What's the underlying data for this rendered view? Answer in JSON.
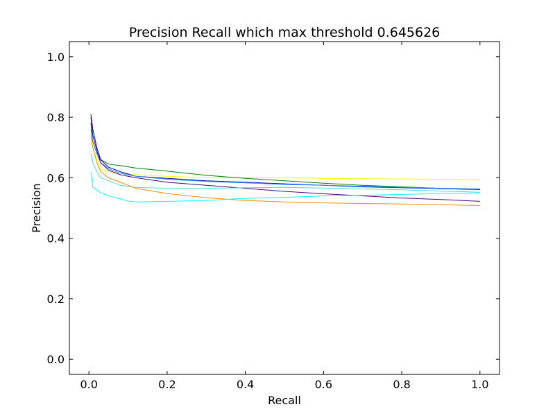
{
  "chart_data": {
    "type": "line",
    "title": "Precision Recall which max threshold 0.645626",
    "xlabel": "Recall",
    "ylabel": "Precision",
    "xlim": [
      -0.05,
      1.05
    ],
    "ylim": [
      -0.05,
      1.05
    ],
    "xticks": [
      0.0,
      0.2,
      0.4,
      0.6,
      0.8,
      1.0
    ],
    "yticks": [
      0.0,
      0.2,
      0.4,
      0.6,
      0.8,
      1.0
    ],
    "xtick_labels": [
      "0.0",
      "0.2",
      "0.4",
      "0.6",
      "0.8",
      "1.0"
    ],
    "ytick_labels": [
      "0.0",
      "0.2",
      "0.4",
      "0.6",
      "0.8",
      "1.0"
    ],
    "grid": false,
    "series": [
      {
        "color": "#ffff00",
        "points": [
          [
            0.005,
            0.72
          ],
          [
            0.01,
            0.7
          ],
          [
            0.02,
            0.66
          ],
          [
            0.03,
            0.63
          ],
          [
            0.05,
            0.62
          ],
          [
            0.08,
            0.615
          ],
          [
            0.12,
            0.61
          ],
          [
            0.2,
            0.605
          ],
          [
            0.3,
            0.6
          ],
          [
            0.4,
            0.6
          ],
          [
            0.5,
            0.6
          ],
          [
            0.6,
            0.598
          ],
          [
            0.7,
            0.597
          ],
          [
            0.8,
            0.596
          ],
          [
            0.9,
            0.595
          ],
          [
            1.0,
            0.593
          ]
        ]
      },
      {
        "color": "#008000",
        "points": [
          [
            0.005,
            0.78
          ],
          [
            0.01,
            0.72
          ],
          [
            0.02,
            0.68
          ],
          [
            0.03,
            0.66
          ],
          [
            0.05,
            0.645
          ],
          [
            0.08,
            0.64
          ],
          [
            0.12,
            0.632
          ],
          [
            0.2,
            0.622
          ],
          [
            0.3,
            0.608
          ],
          [
            0.4,
            0.598
          ],
          [
            0.5,
            0.59
          ],
          [
            0.6,
            0.582
          ],
          [
            0.7,
            0.575
          ],
          [
            0.8,
            0.57
          ],
          [
            0.9,
            0.565
          ],
          [
            1.0,
            0.562
          ]
        ]
      },
      {
        "color": "#0000cd",
        "points": [
          [
            0.005,
            0.81
          ],
          [
            0.01,
            0.76
          ],
          [
            0.02,
            0.7
          ],
          [
            0.03,
            0.66
          ],
          [
            0.05,
            0.635
          ],
          [
            0.08,
            0.62
          ],
          [
            0.12,
            0.605
          ],
          [
            0.2,
            0.598
          ],
          [
            0.3,
            0.59
          ],
          [
            0.4,
            0.585
          ],
          [
            0.5,
            0.58
          ],
          [
            0.6,
            0.575
          ],
          [
            0.7,
            0.57
          ],
          [
            0.8,
            0.567
          ],
          [
            0.9,
            0.564
          ],
          [
            1.0,
            0.561
          ]
        ]
      },
      {
        "color": "#1e90ff",
        "points": [
          [
            0.005,
            0.76
          ],
          [
            0.01,
            0.72
          ],
          [
            0.02,
            0.68
          ],
          [
            0.03,
            0.65
          ],
          [
            0.05,
            0.63
          ],
          [
            0.08,
            0.615
          ],
          [
            0.12,
            0.605
          ],
          [
            0.2,
            0.595
          ],
          [
            0.3,
            0.588
          ],
          [
            0.4,
            0.583
          ],
          [
            0.5,
            0.578
          ],
          [
            0.6,
            0.575
          ],
          [
            0.7,
            0.572
          ],
          [
            0.8,
            0.568
          ],
          [
            0.9,
            0.565
          ],
          [
            1.0,
            0.563
          ]
        ]
      },
      {
        "color": "#4b0082",
        "points": [
          [
            0.005,
            0.8
          ],
          [
            0.01,
            0.74
          ],
          [
            0.02,
            0.69
          ],
          [
            0.03,
            0.65
          ],
          [
            0.05,
            0.625
          ],
          [
            0.08,
            0.61
          ],
          [
            0.12,
            0.6
          ],
          [
            0.2,
            0.585
          ],
          [
            0.3,
            0.575
          ],
          [
            0.4,
            0.565
          ],
          [
            0.5,
            0.555
          ],
          [
            0.6,
            0.547
          ],
          [
            0.7,
            0.54
          ],
          [
            0.8,
            0.533
          ],
          [
            0.9,
            0.528
          ],
          [
            1.0,
            0.522
          ]
        ]
      },
      {
        "color": "#40e0d0",
        "points": [
          [
            0.005,
            0.68
          ],
          [
            0.01,
            0.65
          ],
          [
            0.02,
            0.62
          ],
          [
            0.03,
            0.6
          ],
          [
            0.05,
            0.59
          ],
          [
            0.08,
            0.575
          ],
          [
            0.12,
            0.568
          ],
          [
            0.2,
            0.565
          ],
          [
            0.3,
            0.565
          ],
          [
            0.4,
            0.567
          ],
          [
            0.5,
            0.568
          ],
          [
            0.6,
            0.566
          ],
          [
            0.7,
            0.563
          ],
          [
            0.8,
            0.56
          ],
          [
            0.9,
            0.556
          ],
          [
            1.0,
            0.552
          ]
        ]
      },
      {
        "color": "#ff8c00",
        "points": [
          [
            0.005,
            0.74
          ],
          [
            0.01,
            0.7
          ],
          [
            0.02,
            0.65
          ],
          [
            0.03,
            0.62
          ],
          [
            0.05,
            0.6
          ],
          [
            0.08,
            0.585
          ],
          [
            0.12,
            0.565
          ],
          [
            0.2,
            0.548
          ],
          [
            0.3,
            0.534
          ],
          [
            0.4,
            0.525
          ],
          [
            0.5,
            0.52
          ],
          [
            0.6,
            0.517
          ],
          [
            0.7,
            0.515
          ],
          [
            0.8,
            0.513
          ],
          [
            0.9,
            0.511
          ],
          [
            1.0,
            0.508
          ]
        ]
      },
      {
        "color": "#00ffff",
        "points": [
          [
            0.005,
            0.62
          ],
          [
            0.01,
            0.57
          ],
          [
            0.02,
            0.56
          ],
          [
            0.03,
            0.55
          ],
          [
            0.05,
            0.54
          ],
          [
            0.08,
            0.53
          ],
          [
            0.1,
            0.523
          ],
          [
            0.12,
            0.52
          ],
          [
            0.2,
            0.522
          ],
          [
            0.3,
            0.525
          ],
          [
            0.4,
            0.532
          ],
          [
            0.5,
            0.535
          ],
          [
            0.6,
            0.54
          ],
          [
            0.7,
            0.542
          ],
          [
            0.8,
            0.545
          ],
          [
            0.9,
            0.548
          ],
          [
            1.0,
            0.55
          ]
        ]
      }
    ]
  }
}
